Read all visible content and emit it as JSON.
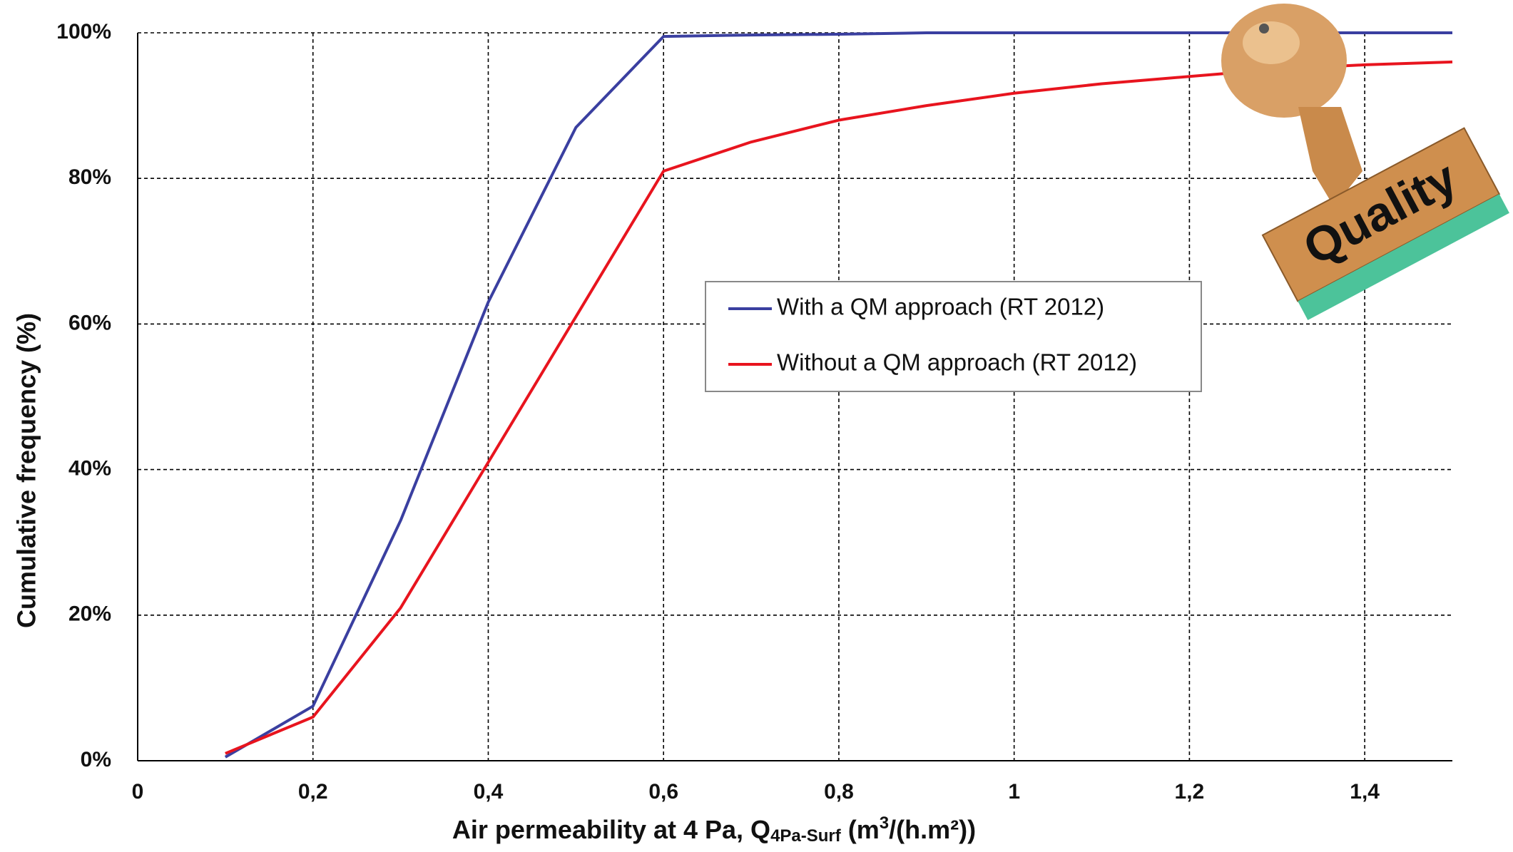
{
  "chart_data": {
    "type": "line",
    "ylabel": "Cumulative frequency (%)",
    "xlabel_parts": [
      "Air permeability at 4 Pa, Q",
      "4Pa-Surf",
      " (m",
      "3",
      "/(h.m²))"
    ],
    "x": [
      0.1,
      0.2,
      0.3,
      0.4,
      0.5,
      0.6,
      0.7,
      0.8,
      0.9,
      1.0,
      1.1,
      1.2,
      1.3,
      1.4,
      1.5
    ],
    "series": [
      {
        "name": "With a QM approach (RT 2012)",
        "color": "#3a3fa0",
        "values": [
          0.5,
          7.5,
          33,
          63,
          87,
          99.5,
          99.7,
          99.8,
          100,
          100,
          100,
          100,
          100,
          100,
          100
        ]
      },
      {
        "name": "Without a QM approach (RT 2012)",
        "color": "#e8141e",
        "values": [
          1,
          6,
          21,
          41,
          61,
          81,
          85,
          88,
          90,
          91.7,
          93,
          94,
          95,
          95.6,
          96
        ]
      }
    ],
    "xlim": [
      0,
      1.5
    ],
    "ylim": [
      0,
      100
    ],
    "xticks": [
      0,
      {
        "value": 0.2,
        "label": "0,2"
      },
      {
        "value": 0.4,
        "label": "0,4"
      },
      {
        "value": 0.6,
        "label": "0,6"
      },
      {
        "value": 0.8,
        "label": "0,8"
      },
      1,
      {
        "value": 1.2,
        "label": "1,2"
      },
      {
        "value": 1.4,
        "label": "1,4"
      }
    ],
    "yticks": [
      {
        "value": 0,
        "label": "0%"
      },
      {
        "value": 20,
        "label": "20%"
      },
      {
        "value": 40,
        "label": "40%"
      },
      {
        "value": 60,
        "label": "60%"
      },
      {
        "value": 80,
        "label": "80%"
      },
      {
        "value": 100,
        "label": "100%"
      }
    ],
    "grid": true
  },
  "decoration": {
    "stamp_text": "Quality"
  }
}
